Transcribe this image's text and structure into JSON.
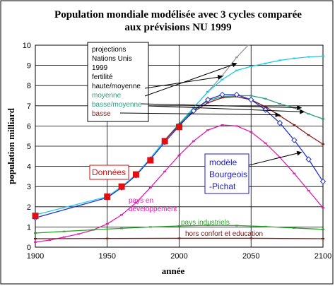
{
  "chart_data": {
    "type": "line",
    "title_line1": "Population mondiale modélisée avec 3 cycles comparée",
    "title_line2": "aux prévisions NU 1999",
    "xlabel": "année",
    "ylabel": "population milliard",
    "xlim": [
      1900,
      2100
    ],
    "ylim": [
      0,
      10
    ],
    "xticks": [
      1900,
      1950,
      2000,
      2050,
      2100
    ],
    "yticks": [
      0,
      1,
      2,
      3,
      4,
      5,
      6,
      7,
      8,
      9,
      10
    ],
    "grid": true,
    "series": [
      {
        "key": "haute",
        "color": "#9a9a9a",
        "marker": "dash",
        "points": [
          [
            1990,
            5.3
          ],
          [
            2000,
            6.1
          ],
          [
            2010,
            6.9
          ],
          [
            2020,
            7.7
          ],
          [
            2030,
            8.5
          ],
          [
            2040,
            9.4
          ],
          [
            2048,
            10.0
          ]
        ]
      },
      {
        "key": "unis",
        "color": "#1ecbea",
        "marker": "dash",
        "points": [
          [
            1900,
            1.6
          ],
          [
            1950,
            2.5
          ],
          [
            1960,
            3.0
          ],
          [
            1970,
            3.6
          ],
          [
            1980,
            4.4
          ],
          [
            1990,
            5.3
          ],
          [
            2000,
            6.1
          ],
          [
            2010,
            6.9
          ],
          [
            2020,
            7.7
          ],
          [
            2030,
            8.3
          ],
          [
            2040,
            8.75
          ],
          [
            2050,
            8.95
          ],
          [
            2060,
            9.1
          ],
          [
            2070,
            9.25
          ],
          [
            2080,
            9.35
          ],
          [
            2090,
            9.42
          ],
          [
            2100,
            9.46
          ]
        ]
      },
      {
        "key": "moyenne",
        "color": "#2e9b7c",
        "marker": "dash",
        "points": [
          [
            1990,
            5.3
          ],
          [
            2000,
            6.1
          ],
          [
            2010,
            6.8
          ],
          [
            2020,
            7.25
          ],
          [
            2030,
            7.45
          ],
          [
            2040,
            7.5
          ],
          [
            2050,
            7.5
          ],
          [
            2060,
            7.35
          ],
          [
            2070,
            7.1
          ],
          [
            2080,
            6.9
          ],
          [
            2090,
            6.6
          ],
          [
            2100,
            6.35
          ]
        ]
      },
      {
        "key": "basse",
        "color": "#8b1a1a",
        "marker": "dash",
        "points": [
          [
            1990,
            5.3
          ],
          [
            2000,
            6.05
          ],
          [
            2010,
            6.7
          ],
          [
            2020,
            7.15
          ],
          [
            2030,
            7.4
          ],
          [
            2040,
            7.45
          ],
          [
            2050,
            7.3
          ],
          [
            2060,
            6.95
          ],
          [
            2070,
            6.5
          ],
          [
            2080,
            6.05
          ],
          [
            2090,
            5.55
          ],
          [
            2100,
            5.1
          ]
        ]
      },
      {
        "key": "modele",
        "color": "#2233cc",
        "marker": "diamond",
        "points": [
          [
            1900,
            1.45
          ],
          [
            1950,
            2.45
          ],
          [
            1960,
            2.95
          ],
          [
            1970,
            3.55
          ],
          [
            1980,
            4.35
          ],
          [
            1990,
            5.2
          ],
          [
            2000,
            6.0
          ],
          [
            2010,
            6.75
          ],
          [
            2020,
            7.3
          ],
          [
            2030,
            7.55
          ],
          [
            2040,
            7.55
          ],
          [
            2050,
            7.3
          ],
          [
            2060,
            6.8
          ],
          [
            2070,
            6.15
          ],
          [
            2080,
            5.3
          ],
          [
            2090,
            4.35
          ],
          [
            2100,
            3.25
          ]
        ]
      },
      {
        "key": "pays_dev",
        "color": "#e020b0",
        "marker": "dash",
        "points": [
          [
            1900,
            0.25
          ],
          [
            1910,
            0.35
          ],
          [
            1920,
            0.5
          ],
          [
            1930,
            0.65
          ],
          [
            1940,
            0.85
          ],
          [
            1950,
            1.15
          ],
          [
            1960,
            1.6
          ],
          [
            1970,
            2.2
          ],
          [
            1980,
            2.95
          ],
          [
            1990,
            3.75
          ],
          [
            2000,
            4.55
          ],
          [
            2010,
            5.25
          ],
          [
            2020,
            5.8
          ],
          [
            2030,
            6.05
          ],
          [
            2040,
            6.0
          ],
          [
            2050,
            5.7
          ],
          [
            2060,
            5.15
          ],
          [
            2070,
            4.45
          ],
          [
            2080,
            3.65
          ],
          [
            2090,
            2.8
          ],
          [
            2100,
            1.95
          ]
        ]
      },
      {
        "key": "pays_ind",
        "color": "#2aa52a",
        "marker": "dash",
        "points": [
          [
            1900,
            0.7
          ],
          [
            1920,
            0.78
          ],
          [
            1940,
            0.86
          ],
          [
            1960,
            0.93
          ],
          [
            1980,
            1.0
          ],
          [
            2000,
            1.05
          ],
          [
            2020,
            1.08
          ],
          [
            2040,
            1.07
          ],
          [
            2060,
            1.02
          ],
          [
            2080,
            0.95
          ],
          [
            2100,
            0.88
          ]
        ]
      },
      {
        "key": "hors",
        "color": "#7a1515",
        "marker": "dash",
        "points": [
          [
            1900,
            0.42
          ],
          [
            1950,
            0.43
          ],
          [
            2000,
            0.44
          ],
          [
            2050,
            0.44
          ],
          [
            2100,
            0.42
          ]
        ]
      }
    ],
    "donnees": {
      "color": "#e01010",
      "points": [
        [
          1900,
          1.55
        ],
        [
          1950,
          2.5
        ],
        [
          1960,
          3.0
        ],
        [
          1970,
          3.6
        ],
        [
          1980,
          4.3
        ],
        [
          1990,
          5.25
        ],
        [
          2000,
          5.95
        ]
      ]
    },
    "legend": [
      {
        "text": "projections",
        "color": "#000000"
      },
      {
        "text": "Nations Unis",
        "color": "#000000"
      },
      {
        "text": "1999",
        "color": "#000000"
      },
      {
        "text": "fertilité",
        "color": "#000000"
      },
      {
        "text": "haute/moyenne",
        "color": "#000000"
      },
      {
        "text": "moyenne",
        "color": "#2e9b7c"
      },
      {
        "text": "basse/moyenne",
        "color": "#2e9b7c"
      },
      {
        "text": "basse",
        "color": "#8b1a1a"
      }
    ],
    "annotations": {
      "donnees_label": "Données",
      "modele_label": [
        "modèle",
        "Bourgeois",
        "-Pichat"
      ],
      "pays_dev_label": [
        "pays en",
        "développement"
      ],
      "pays_ind_label": "pays industriels",
      "hors_label": "hors confort et education"
    },
    "colors": {
      "donnees_label": "#d01010",
      "modele_label": "#1a1acc",
      "pays_dev_label": "#e020b0",
      "pays_ind_label": "#2aa52a",
      "hors_label": "#7a1515"
    }
  }
}
